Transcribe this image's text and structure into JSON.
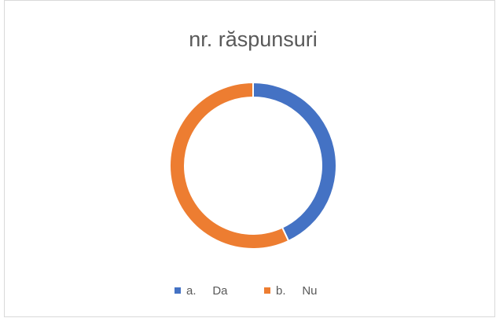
{
  "chart_data": {
    "type": "donut",
    "title": "nr. răspunsuri",
    "categories": [
      "a.     Da",
      "b.     Nu"
    ],
    "values": [
      43,
      57
    ],
    "colors": [
      "#4472c4",
      "#ed7d31"
    ],
    "legend": "bottom"
  }
}
